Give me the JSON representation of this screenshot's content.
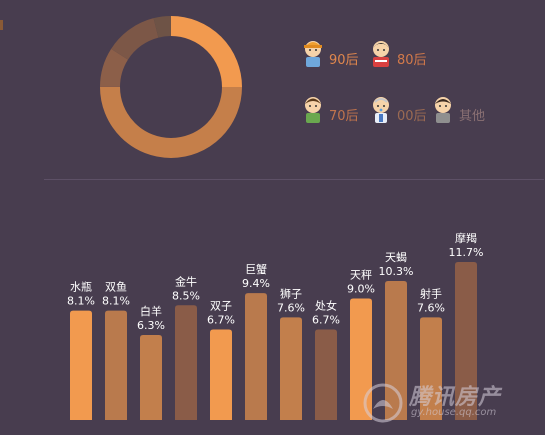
{
  "chart_data": [
    {
      "type": "pie",
      "donut": true,
      "categories": [
        "90后",
        "80后",
        "70后",
        "00后",
        "其他"
      ],
      "values": [
        25,
        50,
        9,
        12,
        4
      ],
      "colors": [
        "#f29a4f",
        "#c57f4a",
        "#8c5f49",
        "#7c5747",
        "#6e5346"
      ],
      "legend_position": "right"
    },
    {
      "type": "bar",
      "categories": [
        "水瓶",
        "双鱼",
        "白羊",
        "金牛",
        "双子",
        "巨蟹",
        "狮子",
        "处女",
        "天秤",
        "天蝎",
        "射手",
        "摩羯"
      ],
      "values": [
        8.1,
        8.1,
        6.3,
        8.5,
        6.7,
        9.4,
        7.6,
        6.7,
        9.0,
        10.3,
        7.6,
        11.7
      ],
      "labels": [
        "8.1%",
        "8.1%",
        "6.3%",
        "8.5%",
        "6.7%",
        "9.4%",
        "7.6%",
        "6.7%",
        "9.0%",
        "10.3%",
        "7.6%",
        "11.7%"
      ],
      "colors": [
        "#f29a4f",
        "#b97a4d",
        "#c27f4c",
        "#8a5c48",
        "#f29a4f",
        "#b97a4d",
        "#c27f4c",
        "#8a5c48",
        "#f29a4f",
        "#b97a4d",
        "#c27f4c",
        "#8a5c48"
      ],
      "ylim": [
        0,
        12
      ]
    }
  ],
  "legend": {
    "items": [
      {
        "label": "90后",
        "color": "#e0874d"
      },
      {
        "label": "80后",
        "color": "#d2794a"
      },
      {
        "label": "70后",
        "color": "#c0744d"
      },
      {
        "label": "00后",
        "color": "#9b6a52"
      },
      {
        "label": "其他",
        "color": "#8a7073"
      }
    ]
  },
  "watermark": {
    "title": "腾讯房产",
    "url": "gy.house.qq.com"
  },
  "colors": {
    "background": "#483d4f",
    "divider": "#5d5066",
    "bar_label": "#ffffff"
  }
}
